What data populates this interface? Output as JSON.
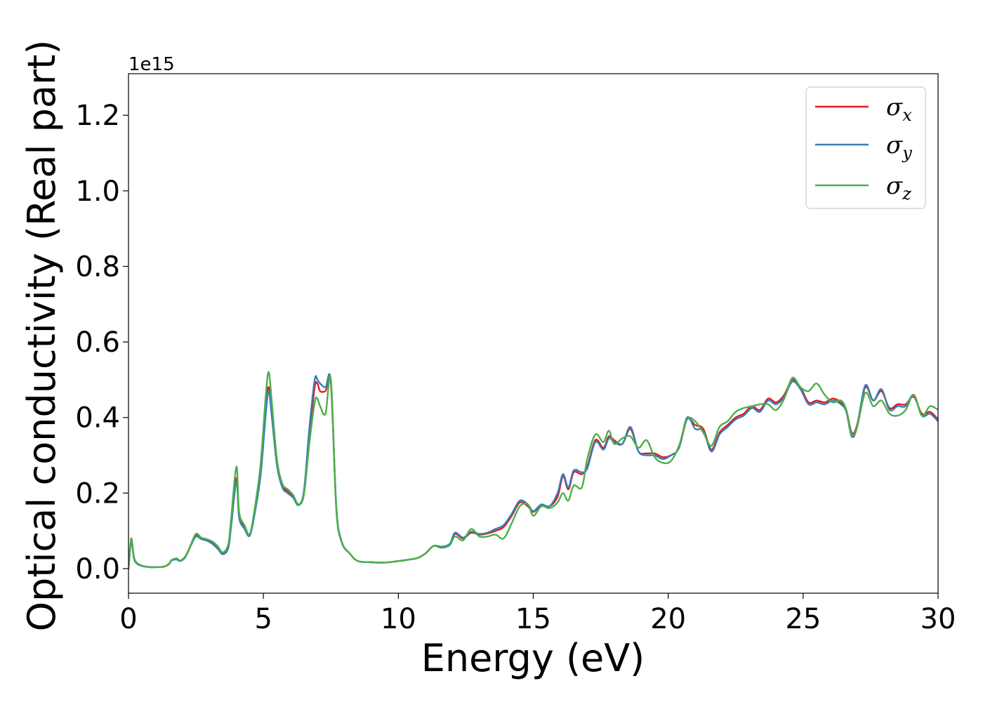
{
  "chart_data": {
    "type": "line",
    "xlabel": "Energy (eV)",
    "ylabel": "Optical conductivity (Real part)",
    "y_offset_label": "1e15",
    "xlim": [
      0,
      30
    ],
    "ylim": [
      -0.065,
      1.31
    ],
    "x_ticks": [
      0,
      5,
      10,
      15,
      20,
      25,
      30
    ],
    "x_tick_labels": [
      "0",
      "5",
      "10",
      "15",
      "20",
      "25",
      "30"
    ],
    "y_ticks": [
      0.0,
      0.2,
      0.4,
      0.6,
      0.8,
      1.0,
      1.2
    ],
    "y_tick_labels": [
      "0.0",
      "0.2",
      "0.4",
      "0.6",
      "0.8",
      "1.0",
      "1.2"
    ],
    "grid": false,
    "legend_position": "top-right",
    "x": [
      0,
      0.1,
      0.2,
      0.3,
      0.5,
      0.8,
      1.0,
      1.3,
      1.5,
      1.6,
      1.8,
      1.9,
      2.1,
      2.3,
      2.5,
      2.7,
      2.9,
      3.1,
      3.3,
      3.5,
      3.7,
      3.8,
      4.0,
      4.1,
      4.3,
      4.5,
      4.7,
      4.9,
      5.1,
      5.2,
      5.3,
      5.5,
      5.7,
      5.9,
      6.1,
      6.3,
      6.5,
      6.7,
      6.9,
      7.0,
      7.1,
      7.3,
      7.5,
      7.7,
      7.9,
      8.2,
      8.5,
      9.0,
      9.5,
      10.0,
      10.3,
      10.7,
      11.0,
      11.3,
      11.6,
      11.9,
      12.1,
      12.4,
      12.7,
      13.0,
      13.3,
      13.6,
      13.9,
      14.2,
      14.5,
      14.8,
      15.0,
      15.3,
      15.6,
      15.9,
      16.1,
      16.3,
      16.5,
      16.8,
      17.0,
      17.3,
      17.6,
      17.8,
      18.0,
      18.3,
      18.6,
      18.9,
      19.2,
      19.5,
      19.8,
      20.1,
      20.4,
      20.7,
      21.0,
      21.3,
      21.6,
      21.9,
      22.2,
      22.5,
      22.8,
      23.1,
      23.4,
      23.7,
      24.0,
      24.3,
      24.6,
      24.9,
      25.2,
      25.5,
      25.8,
      26.1,
      26.4,
      26.6,
      26.8,
      27.0,
      27.3,
      27.6,
      27.9,
      28.2,
      28.5,
      28.8,
      29.1,
      29.4,
      29.7,
      30.0
    ],
    "series": [
      {
        "name": "σ",
        "subscript": "x",
        "color": "#e41a1c",
        "values": [
          0.0,
          0.075,
          0.03,
          0.015,
          0.007,
          0.004,
          0.004,
          0.005,
          0.012,
          0.022,
          0.025,
          0.02,
          0.03,
          0.06,
          0.088,
          0.08,
          0.075,
          0.068,
          0.055,
          0.04,
          0.06,
          0.12,
          0.24,
          0.14,
          0.11,
          0.09,
          0.16,
          0.26,
          0.44,
          0.48,
          0.42,
          0.28,
          0.22,
          0.205,
          0.19,
          0.17,
          0.2,
          0.35,
          0.48,
          0.49,
          0.47,
          0.47,
          0.49,
          0.16,
          0.07,
          0.04,
          0.02,
          0.017,
          0.016,
          0.02,
          0.023,
          0.028,
          0.04,
          0.06,
          0.058,
          0.065,
          0.092,
          0.08,
          0.095,
          0.09,
          0.093,
          0.1,
          0.11,
          0.14,
          0.175,
          0.165,
          0.15,
          0.168,
          0.165,
          0.19,
          0.245,
          0.21,
          0.255,
          0.25,
          0.27,
          0.34,
          0.32,
          0.35,
          0.34,
          0.33,
          0.37,
          0.31,
          0.305,
          0.305,
          0.295,
          0.3,
          0.32,
          0.395,
          0.38,
          0.37,
          0.315,
          0.36,
          0.38,
          0.4,
          0.41,
          0.43,
          0.42,
          0.45,
          0.44,
          0.46,
          0.5,
          0.48,
          0.44,
          0.445,
          0.44,
          0.45,
          0.44,
          0.42,
          0.36,
          0.38,
          0.48,
          0.445,
          0.47,
          0.425,
          0.435,
          0.435,
          0.455,
          0.41,
          0.415,
          0.395
        ]
      },
      {
        "name": "σ",
        "subscript": "y",
        "color": "#377eb8",
        "values": [
          0.0,
          0.072,
          0.028,
          0.014,
          0.007,
          0.004,
          0.004,
          0.005,
          0.012,
          0.022,
          0.024,
          0.02,
          0.03,
          0.06,
          0.085,
          0.078,
          0.074,
          0.066,
          0.053,
          0.038,
          0.055,
          0.11,
          0.23,
          0.135,
          0.105,
          0.088,
          0.155,
          0.25,
          0.42,
          0.47,
          0.41,
          0.275,
          0.215,
          0.2,
          0.188,
          0.168,
          0.205,
          0.37,
          0.5,
          0.5,
          0.49,
          0.48,
          0.495,
          0.165,
          0.072,
          0.04,
          0.02,
          0.017,
          0.016,
          0.02,
          0.023,
          0.028,
          0.04,
          0.06,
          0.058,
          0.065,
          0.095,
          0.082,
          0.098,
          0.092,
          0.095,
          0.105,
          0.115,
          0.145,
          0.18,
          0.17,
          0.152,
          0.17,
          0.165,
          0.2,
          0.25,
          0.215,
          0.26,
          0.255,
          0.265,
          0.335,
          0.315,
          0.345,
          0.335,
          0.33,
          0.375,
          0.31,
          0.3,
          0.3,
          0.29,
          0.3,
          0.32,
          0.4,
          0.37,
          0.365,
          0.31,
          0.355,
          0.375,
          0.395,
          0.405,
          0.425,
          0.415,
          0.445,
          0.435,
          0.455,
          0.495,
          0.475,
          0.435,
          0.44,
          0.435,
          0.445,
          0.435,
          0.415,
          0.35,
          0.375,
          0.485,
          0.445,
          0.475,
          0.42,
          0.43,
          0.43,
          0.46,
          0.405,
          0.41,
          0.39
        ]
      },
      {
        "name": "σ",
        "subscript": "z",
        "color": "#4daf4a",
        "values": [
          0.0,
          0.08,
          0.032,
          0.016,
          0.008,
          0.004,
          0.004,
          0.005,
          0.013,
          0.023,
          0.027,
          0.021,
          0.032,
          0.062,
          0.092,
          0.082,
          0.078,
          0.072,
          0.06,
          0.043,
          0.065,
          0.13,
          0.27,
          0.15,
          0.115,
          0.092,
          0.17,
          0.28,
          0.47,
          0.52,
          0.45,
          0.29,
          0.225,
          0.21,
          0.195,
          0.17,
          0.195,
          0.33,
          0.44,
          0.45,
          0.43,
          0.41,
          0.5,
          0.158,
          0.07,
          0.04,
          0.02,
          0.017,
          0.016,
          0.02,
          0.023,
          0.028,
          0.04,
          0.06,
          0.055,
          0.062,
          0.085,
          0.075,
          0.105,
          0.085,
          0.085,
          0.09,
          0.08,
          0.12,
          0.165,
          0.17,
          0.14,
          0.165,
          0.16,
          0.175,
          0.2,
          0.18,
          0.22,
          0.215,
          0.29,
          0.355,
          0.335,
          0.365,
          0.33,
          0.345,
          0.35,
          0.32,
          0.34,
          0.295,
          0.28,
          0.285,
          0.325,
          0.395,
          0.39,
          0.36,
          0.325,
          0.375,
          0.39,
          0.415,
          0.425,
          0.43,
          0.435,
          0.435,
          0.42,
          0.45,
          0.505,
          0.48,
          0.47,
          0.49,
          0.46,
          0.44,
          0.445,
          0.42,
          0.355,
          0.375,
          0.465,
          0.43,
          0.445,
          0.41,
          0.405,
          0.42,
          0.46,
          0.405,
          0.43,
          0.42
        ]
      }
    ]
  }
}
